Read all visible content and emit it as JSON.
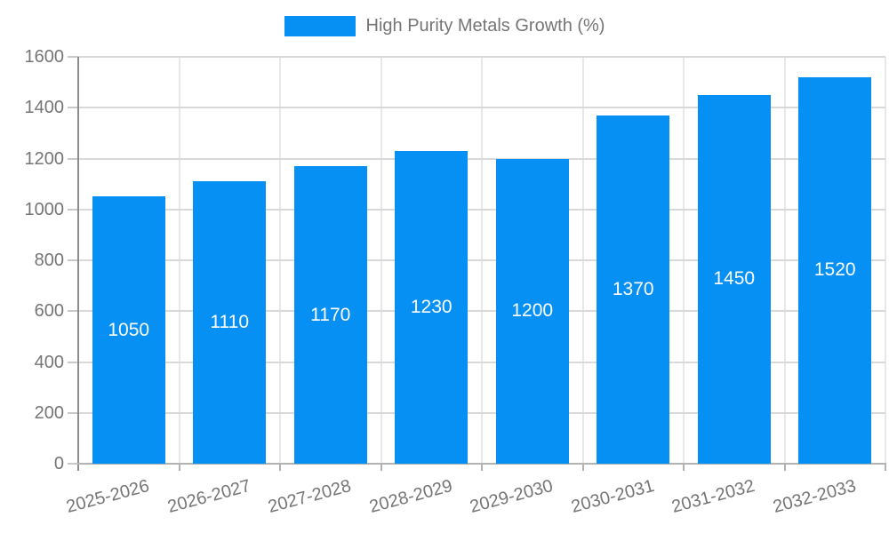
{
  "legend": {
    "label": "High Purity Metals Growth (%)"
  },
  "chart_data": {
    "type": "bar",
    "title": "",
    "xlabel": "",
    "ylabel": "",
    "categories": [
      "2025-2026",
      "2026-2027",
      "2027-2028",
      "2028-2029",
      "2029-2030",
      "2030-2031",
      "2031-2032",
      "2032-2033"
    ],
    "series": [
      {
        "name": "High Purity Metals Growth (%)",
        "values": [
          1050,
          1110,
          1170,
          1230,
          1200,
          1370,
          1450,
          1520
        ]
      }
    ],
    "values": [
      1050,
      1110,
      1170,
      1230,
      1200,
      1370,
      1450,
      1520
    ],
    "value_labels": [
      "1050",
      "1110",
      "1170",
      "1230",
      "1200",
      "1370",
      "1450",
      "1520"
    ],
    "ylim": [
      0,
      1600
    ],
    "yticks": [
      0,
      200,
      400,
      600,
      800,
      1000,
      1200,
      1400,
      1600
    ],
    "grid": true,
    "legend_position": "top-center",
    "bar_color": "#0690f4",
    "value_label_color": "#ffffff",
    "axis_text_color": "#757575",
    "grid_color_h": "#d9d9d9",
    "grid_color_v": "#e8e8e8",
    "axis_line_color": "#8c8c8c",
    "baseline_color": "#b3b3b3",
    "tick_color": "#c9c9c9"
  }
}
